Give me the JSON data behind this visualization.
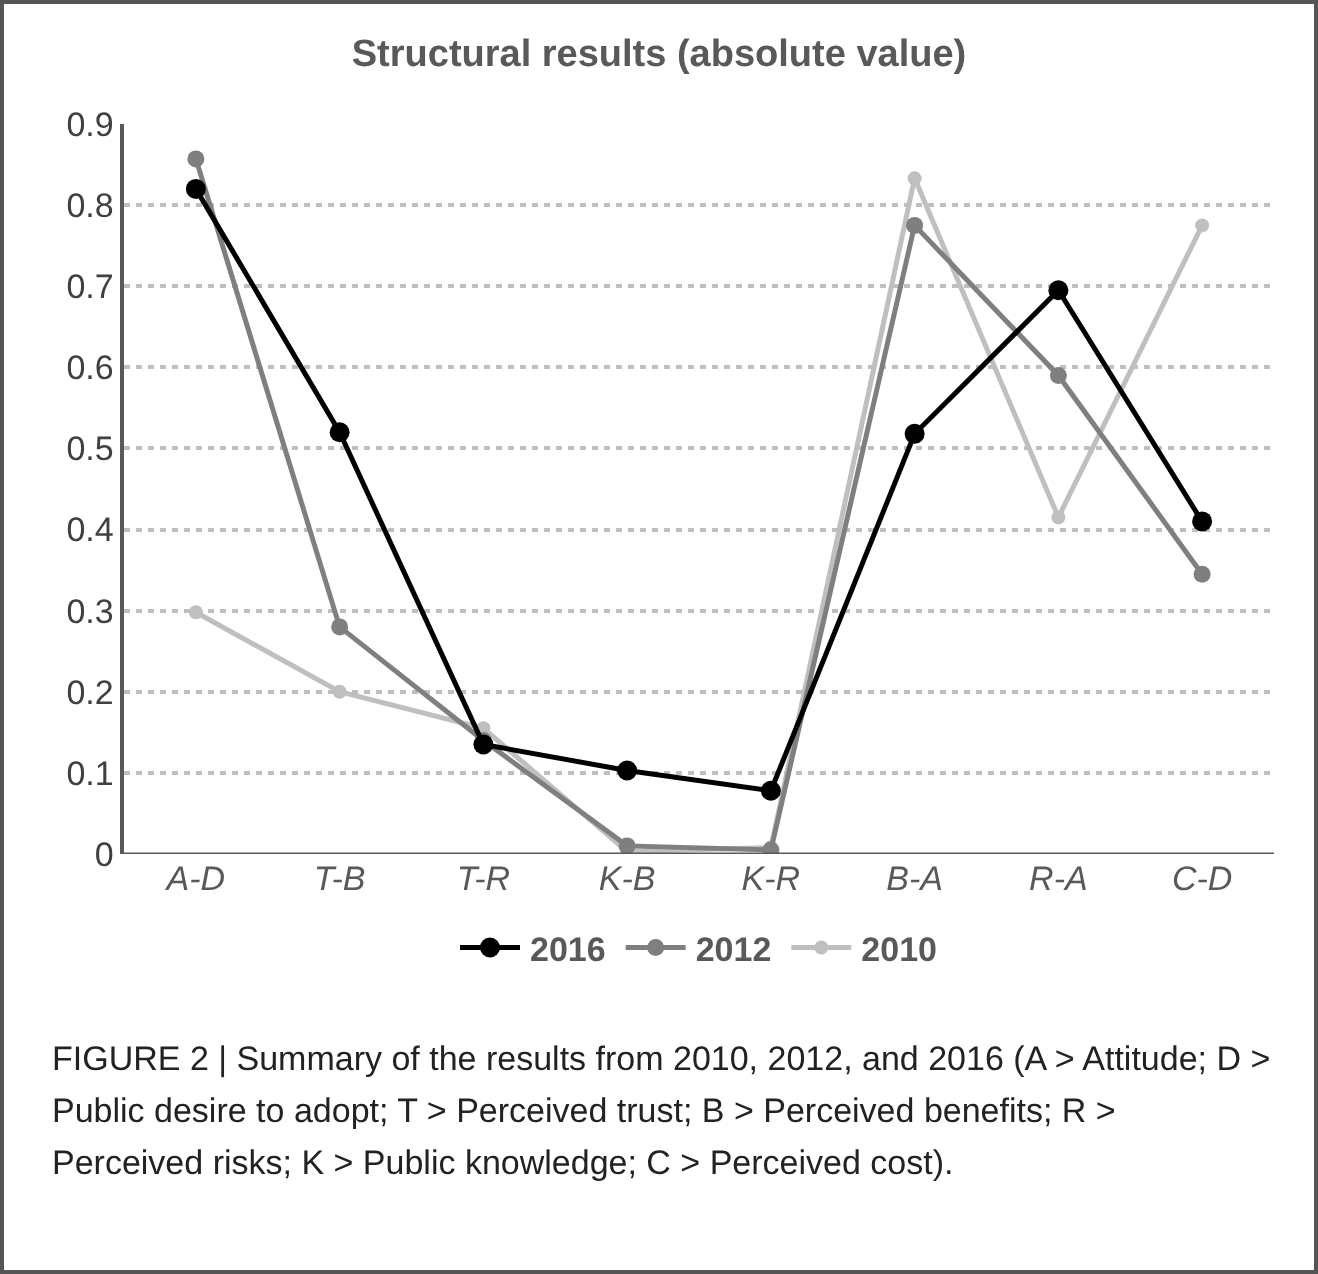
{
  "chart_data": {
    "type": "line",
    "title": "Structural results (absolute value)",
    "categories": [
      "A-D",
      "T-B",
      "T-R",
      "K-B",
      "K-R",
      "B-A",
      "R-A",
      "C-D"
    ],
    "series": [
      {
        "name": "2016",
        "color": "#000000",
        "values": [
          0.82,
          0.52,
          0.135,
          0.103,
          0.078,
          0.518,
          0.695,
          0.41
        ]
      },
      {
        "name": "2012",
        "color": "#7f7f7f",
        "values": [
          0.857,
          0.28,
          0.14,
          0.01,
          0.005,
          0.775,
          0.59,
          0.345
        ]
      },
      {
        "name": "2010",
        "color": "#bfbfbf",
        "values": [
          0.298,
          0.2,
          0.155,
          0.003,
          0.008,
          0.833,
          0.415,
          0.775
        ]
      }
    ],
    "ylim": [
      0,
      0.9
    ],
    "yticks": [
      0,
      {
        "value": 0.1,
        "label": "0.1"
      },
      {
        "value": 0.2,
        "label": "0.2"
      },
      {
        "value": 0.3,
        "label": "0.3"
      },
      {
        "value": 0.4,
        "label": "0.4"
      },
      {
        "value": 0.5,
        "label": "0.5"
      },
      {
        "value": 0.6,
        "label": "0.6"
      },
      {
        "value": 0.7,
        "label": "0.7"
      },
      {
        "value": 0.8,
        "label": "0.8"
      },
      {
        "value": 0.9,
        "label": "0.9"
      }
    ],
    "grid": "y",
    "legend": "bottom",
    "marker": "circle",
    "line_style": "solid",
    "annotations": [
      "FIGURE 2 | Summary of the results from 2010, 2012, and 2016 (A > Attitude; D > Public desire to adopt; T > Perceived trust; B > Perceived benefits; R > Perceived risks; K > Public knowledge; C > Perceived cost)."
    ]
  }
}
